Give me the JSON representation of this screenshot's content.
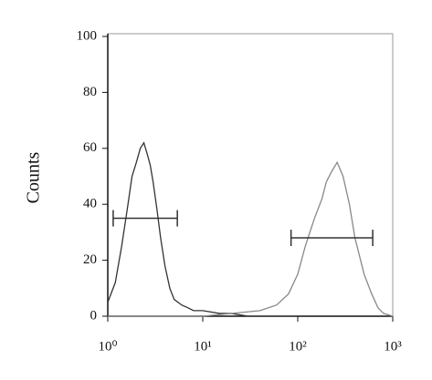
{
  "chart_data": {
    "type": "line",
    "ylabel": "Counts",
    "xlog": true,
    "xlim": [
      1,
      1000
    ],
    "ylim": [
      0,
      100
    ],
    "xticks": [
      {
        "value": 1,
        "label": "10⁰"
      },
      {
        "value": 10,
        "label": "10¹"
      },
      {
        "value": 100,
        "label": "10²"
      },
      {
        "value": 1000,
        "label": "10³"
      }
    ],
    "yticks": [
      0,
      20,
      40,
      60,
      80,
      100
    ],
    "series": [
      {
        "color": "#333333",
        "x": [
          1,
          1.2,
          1.4,
          1.6,
          1.8,
          2.0,
          2.2,
          2.4,
          2.6,
          2.8,
          3.0,
          3.3,
          3.6,
          4.0,
          4.5,
          5,
          6,
          7,
          8,
          10,
          15,
          20,
          30,
          50,
          100
        ],
        "values": [
          5,
          12,
          25,
          38,
          50,
          55,
          60,
          62,
          58,
          54,
          48,
          38,
          28,
          18,
          10,
          6,
          4,
          3,
          2,
          2,
          1,
          1,
          0,
          0,
          0
        ]
      },
      {
        "color": "#888888",
        "x": [
          1,
          5,
          10,
          20,
          40,
          60,
          80,
          100,
          120,
          150,
          180,
          200,
          230,
          260,
          300,
          350,
          400,
          500,
          600,
          700,
          800,
          1000
        ],
        "values": [
          0,
          0,
          0,
          1,
          2,
          4,
          8,
          15,
          25,
          35,
          42,
          48,
          52,
          55,
          50,
          40,
          28,
          15,
          8,
          3,
          1,
          0
        ]
      }
    ],
    "gates": [
      {
        "x": [
          1.14,
          5.4
        ],
        "y": 35
      },
      {
        "x": [
          85,
          616
        ],
        "y": 28
      }
    ]
  }
}
